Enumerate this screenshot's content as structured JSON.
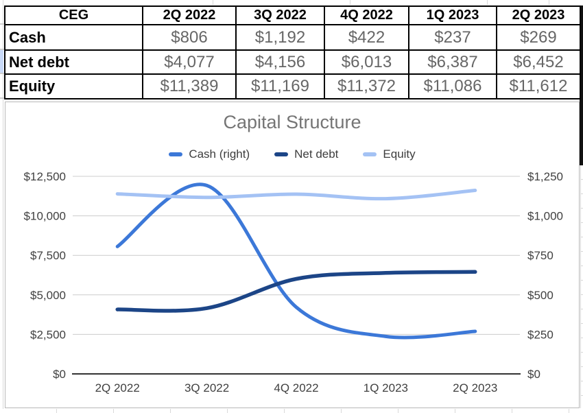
{
  "spreadsheet": {
    "table": {
      "corner_label": "CEG",
      "col_headers": [
        "2Q 2022",
        "3Q 2022",
        "4Q 2022",
        "1Q 2023",
        "2Q 2023"
      ],
      "rows": [
        {
          "label": "Cash",
          "values": [
            "$806",
            "$1,192",
            "$422",
            "$237",
            "$269"
          ]
        },
        {
          "label": "Net debt",
          "values": [
            "$4,077",
            "$4,156",
            "$6,013",
            "$6,387",
            "$6,452"
          ]
        },
        {
          "label": "Equity",
          "values": [
            "$11,389",
            "$11,169",
            "$11,372",
            "$11,086",
            "$11,612"
          ]
        }
      ]
    }
  },
  "chart_data": {
    "type": "line",
    "title": "Capital Structure",
    "smooth": true,
    "grid": true,
    "legend_position": "top",
    "categories": [
      "2Q 2022",
      "3Q 2022",
      "4Q 2022",
      "1Q 2023",
      "2Q 2023"
    ],
    "series": [
      {
        "name": "Cash (right)",
        "axis": "right",
        "color": "#3c78d8",
        "line_width": 5,
        "values": [
          806,
          1192,
          422,
          237,
          269
        ]
      },
      {
        "name": "Net debt",
        "axis": "left",
        "color": "#1c4587",
        "line_width": 5.5,
        "values": [
          4077,
          4156,
          6013,
          6387,
          6452
        ]
      },
      {
        "name": "Equity",
        "axis": "left",
        "color": "#a4c2f4",
        "line_width": 5,
        "values": [
          11389,
          11169,
          11372,
          11086,
          11612
        ]
      }
    ],
    "left_axis": {
      "min": 0,
      "max": 12500,
      "step": 2500,
      "labels": [
        "$0",
        "$2,500",
        "$5,000",
        "$7,500",
        "$10,000",
        "$12,500"
      ]
    },
    "right_axis": {
      "min": 0,
      "max": 1250,
      "step": 250,
      "labels": [
        "$0",
        "$250",
        "$500",
        "$750",
        "$1,000",
        "$1,250"
      ]
    },
    "colors": {
      "title": "#757575",
      "axis_labels": "#404040",
      "gridline": "#cccccc",
      "baseline": "#333333",
      "legend_text": "#3d3d3d"
    }
  }
}
